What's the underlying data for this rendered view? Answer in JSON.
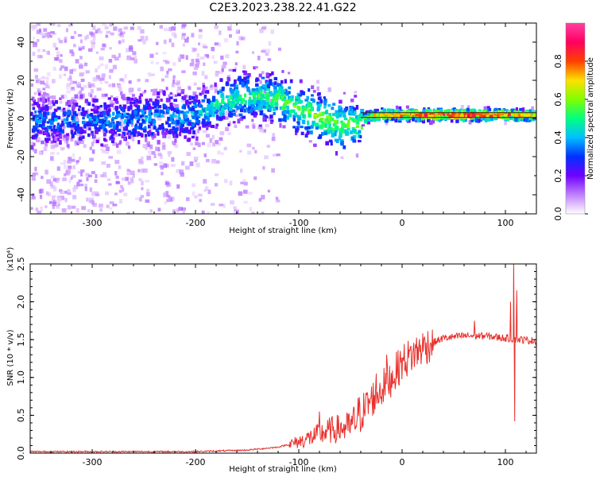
{
  "title": "C2E3.2023.238.22.41.G22",
  "chart_data": [
    {
      "type": "heatmap",
      "name": "spectrogram",
      "xlabel": "Height of straight line (km)",
      "ylabel": "Frequency (Hz)",
      "xlim": [
        -360,
        130
      ],
      "ylim": [
        -50,
        50
      ],
      "xticks": [
        -300,
        -200,
        -100,
        0,
        100
      ],
      "yticks": [
        -40,
        -20,
        0,
        20,
        40
      ],
      "colorbar": {
        "label": "Normalized spectral amplitude",
        "range": [
          0.0,
          1.0
        ],
        "ticks": [
          "0.0",
          "0.2",
          "0.4",
          "0.6",
          "0.8"
        ],
        "colormap": [
          "#ffffff",
          "#c080ff",
          "#7000ff",
          "#0030ff",
          "#00c0ff",
          "#00ff80",
          "#80ff00",
          "#ffe000",
          "#ff4000",
          "#ff0060",
          "#ff40a0"
        ]
      },
      "ridge": [
        {
          "x": -360,
          "f": -1,
          "a": 0.35
        },
        {
          "x": -300,
          "f": -1,
          "a": 0.35
        },
        {
          "x": -250,
          "f": 0,
          "a": 0.38
        },
        {
          "x": -200,
          "f": 2,
          "a": 0.4
        },
        {
          "x": -170,
          "f": 10,
          "a": 0.5
        },
        {
          "x": -150,
          "f": 12,
          "a": 0.5
        },
        {
          "x": -120,
          "f": 10,
          "a": 0.55
        },
        {
          "x": -100,
          "f": 5,
          "a": 0.55
        },
        {
          "x": -80,
          "f": 0,
          "a": 0.6
        },
        {
          "x": -60,
          "f": -3,
          "a": 0.6
        },
        {
          "x": -45,
          "f": -3,
          "a": 0.55
        },
        {
          "x": -35,
          "f": 1,
          "a": 0.65
        },
        {
          "x": -20,
          "f": 2,
          "a": 0.8
        },
        {
          "x": 0,
          "f": 2,
          "a": 0.85
        },
        {
          "x": 50,
          "f": 2,
          "a": 0.9
        },
        {
          "x": 90,
          "f": 2,
          "a": 0.85
        },
        {
          "x": 130,
          "f": 2,
          "a": 0.75
        }
      ]
    },
    {
      "type": "line",
      "name": "snr",
      "xlabel": "Height of straight line (km)",
      "ylabel": "SNR (10 * v/v)",
      "yscale_label": "(x10⁴)",
      "xlim": [
        -360,
        130
      ],
      "ylim": [
        0.0,
        2.5
      ],
      "xticks": [
        -300,
        -200,
        -100,
        0,
        100
      ],
      "yticks": [
        "0.0",
        "0.5",
        "1.0",
        "1.5",
        "2.0",
        "2.5"
      ],
      "color": "#e8302c",
      "envelope": [
        {
          "x": -360,
          "y": 0.02
        },
        {
          "x": -200,
          "y": 0.02
        },
        {
          "x": -150,
          "y": 0.04
        },
        {
          "x": -120,
          "y": 0.08
        },
        {
          "x": -100,
          "y": 0.15
        },
        {
          "x": -70,
          "y": 0.3
        },
        {
          "x": -50,
          "y": 0.35
        },
        {
          "x": -30,
          "y": 0.7
        },
        {
          "x": -10,
          "y": 1.0
        },
        {
          "x": 0,
          "y": 1.2
        },
        {
          "x": 20,
          "y": 1.4
        },
        {
          "x": 40,
          "y": 1.52
        },
        {
          "x": 60,
          "y": 1.55
        },
        {
          "x": 80,
          "y": 1.55
        },
        {
          "x": 100,
          "y": 1.52
        },
        {
          "x": 130,
          "y": 1.48
        }
      ],
      "spikes": [
        {
          "x": -80,
          "y": 0.55
        },
        {
          "x": -25,
          "y": 1.05
        },
        {
          "x": -15,
          "y": 1.3
        },
        {
          "x": 70,
          "y": 1.75
        },
        {
          "x": 105,
          "y": 2.0
        },
        {
          "x": 108,
          "y": 2.55
        },
        {
          "x": 109,
          "y": 0.42
        },
        {
          "x": 111,
          "y": 2.15
        }
      ]
    }
  ]
}
